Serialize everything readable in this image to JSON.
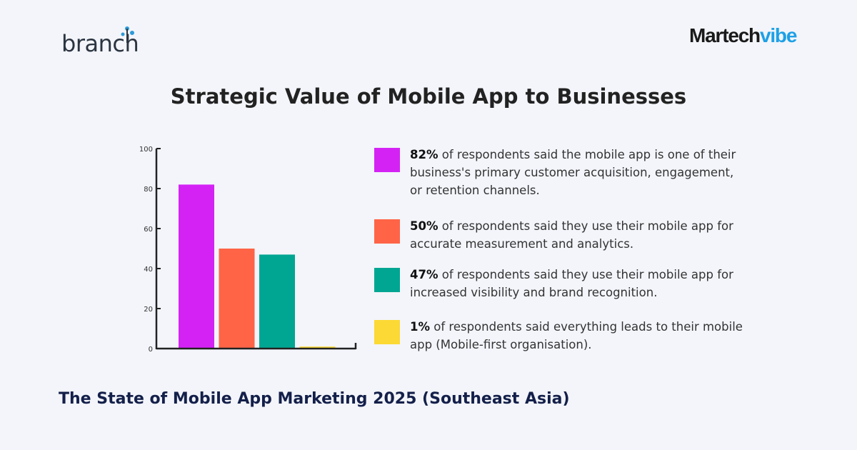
{
  "logos": {
    "left": "branch",
    "right_part1": "Martech",
    "right_part2": "vibe"
  },
  "colors": {
    "purple": "#d422f5",
    "orange": "#ff6446",
    "teal": "#00a692",
    "yellow": "#fcd934",
    "accent_blue": "#1ea0e6"
  },
  "chart_data": {
    "type": "bar",
    "title": "Strategic Value of Mobile App to Businesses",
    "categories": [
      "",
      "",
      "",
      ""
    ],
    "values": [
      82,
      50,
      47,
      1
    ],
    "colors": [
      "#d422f5",
      "#ff6446",
      "#00a692",
      "#fcd934"
    ],
    "ylim": [
      0,
      100
    ],
    "yticks": [
      0,
      20,
      40,
      60,
      80,
      100
    ],
    "grid": false,
    "legend_placement": "right"
  },
  "legend": [
    {
      "pct": "82%",
      "text": " of respondents said the mobile app is one of their business's primary customer acquisition, engagement, or retention channels."
    },
    {
      "pct": "50%",
      "text": " of respondents said they use their mobile app for accurate measurement and analytics."
    },
    {
      "pct": "47%",
      "text": " of respondents said they use their mobile app for increased visibility and brand recognition."
    },
    {
      "pct": "1%",
      "text": " of respondents said everything leads to their mobile app (Mobile-first organisation)."
    }
  ],
  "footer": "The State of Mobile App Marketing 2025 (Southeast Asia)"
}
